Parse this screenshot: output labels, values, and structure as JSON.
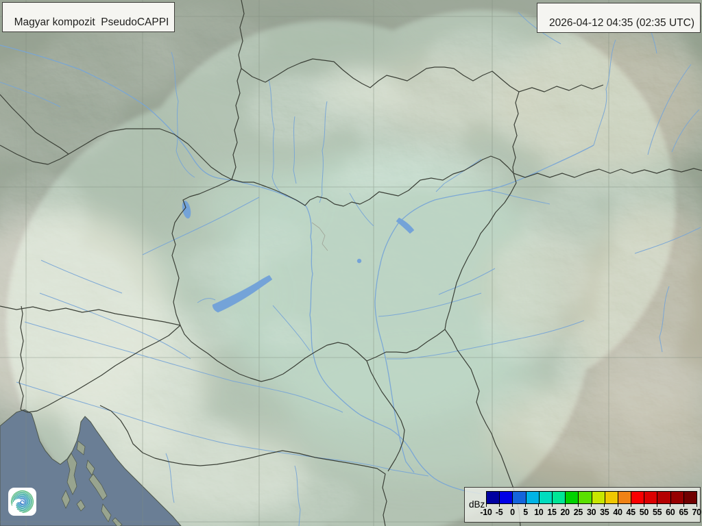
{
  "header": {
    "product_label": "Magyar kompozit  PseudoCAPPI",
    "timestamp": "2026-04-12 04:35 (02:35 UTC)"
  },
  "legend": {
    "unit": "dBz",
    "ticks": [
      "-10",
      "-5",
      "0",
      "5",
      "10",
      "15",
      "20",
      "25",
      "30",
      "35",
      "40",
      "45",
      "50",
      "55",
      "60",
      "65",
      "70"
    ],
    "colors": [
      "#0000a0",
      "#0000e6",
      "#1464dc",
      "#00b4e6",
      "#00dcbe",
      "#00e696",
      "#00d200",
      "#5ae000",
      "#c8e600",
      "#f0c800",
      "#f08214",
      "#fa0000",
      "#dc0000",
      "#b40000",
      "#960000",
      "#700000"
    ]
  },
  "theme": {
    "terrain_base": "#a8b3a4",
    "plain_green": "#b9d1c2",
    "mountain_tan": "#d2c4ad",
    "mountain_white": "#e7e2d3",
    "forest_olive": "#93a18e",
    "sea": "#6a7e95",
    "coast": "#4d564a",
    "border": "#3a3f36",
    "river": "#78a5d6",
    "lake": "#74a3d8",
    "graticule": "#7f8b7d",
    "radar_inside": "#c4e0cd",
    "radar_outside": "#6b7566",
    "label_bg": "#f5f5f1",
    "label_border": "#3c3c38",
    "label_text": "#1e1e1c",
    "panel_bg": "rgba(234,236,230,0.8)",
    "logo_bg": "#ffffff",
    "logo_colors": [
      "#57ba7c",
      "#49b586",
      "#3daf90",
      "#33a89b",
      "#2ca1a6",
      "#2899b1",
      "#2790bb",
      "#2b86c3",
      "#357cc8"
    ]
  }
}
